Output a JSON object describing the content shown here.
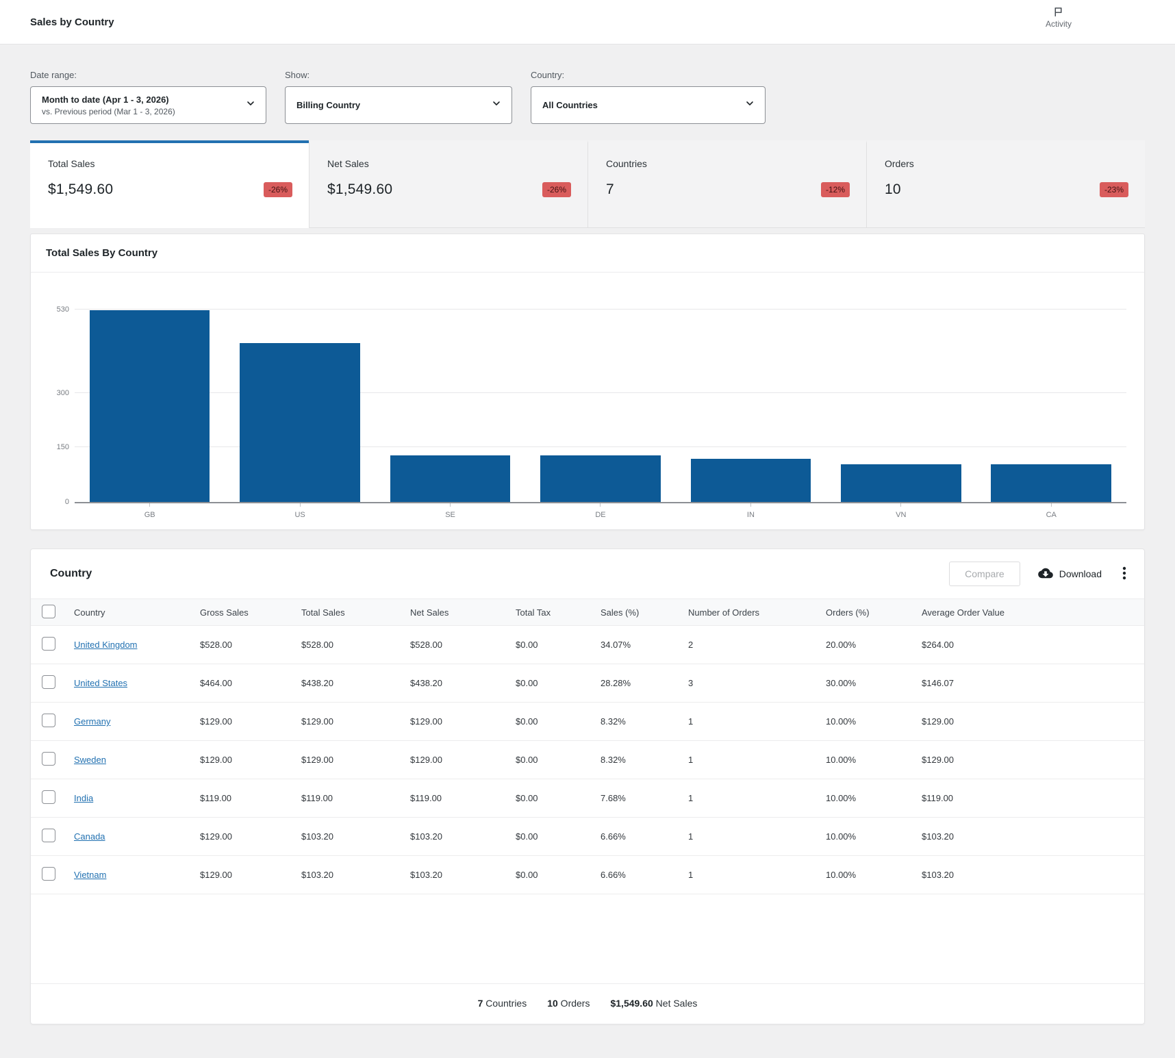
{
  "header": {
    "title": "Sales by Country",
    "activity_label": "Activity"
  },
  "filters": {
    "date_range": {
      "label": "Date range:",
      "value": "Month to date (Apr 1 - 3, 2026)",
      "compare": "vs. Previous period (Mar 1 - 3, 2026)"
    },
    "show": {
      "label": "Show:",
      "value": "Billing Country"
    },
    "country": {
      "label": "Country:",
      "value": "All Countries"
    }
  },
  "summary": [
    {
      "label": "Total Sales",
      "value": "$1,549.60",
      "delta": "-26%",
      "selected": true
    },
    {
      "label": "Net Sales",
      "value": "$1,549.60",
      "delta": "-26%",
      "selected": false
    },
    {
      "label": "Countries",
      "value": "7",
      "delta": "-12%",
      "selected": false
    },
    {
      "label": "Orders",
      "value": "10",
      "delta": "-23%",
      "selected": false
    }
  ],
  "chart_data": {
    "type": "bar",
    "title": "Total Sales By Country",
    "categories": [
      "GB",
      "US",
      "SE",
      "DE",
      "IN",
      "VN",
      "CA"
    ],
    "values": [
      528,
      438.2,
      129,
      129,
      119,
      103.2,
      103.2
    ],
    "xlabel": "",
    "ylabel": "",
    "ylim": [
      0,
      530
    ],
    "yticks": [
      0,
      150,
      300,
      530
    ],
    "grid": true,
    "legend": "none",
    "bar_color": "#0d5a96"
  },
  "table": {
    "title": "Country",
    "compare_label": "Compare",
    "download_label": "Download",
    "columns": [
      {
        "key": "country",
        "label": "Country"
      },
      {
        "key": "gross_sales",
        "label": "Gross Sales"
      },
      {
        "key": "total_sales",
        "label": "Total Sales"
      },
      {
        "key": "net_sales",
        "label": "Net Sales"
      },
      {
        "key": "total_tax",
        "label": "Total Tax"
      },
      {
        "key": "sales_pct",
        "label": "Sales (%)"
      },
      {
        "key": "num_orders",
        "label": "Number of Orders"
      },
      {
        "key": "orders_pct",
        "label": "Orders (%)"
      },
      {
        "key": "avg_order_value",
        "label": "Average Order Value"
      }
    ],
    "rows": [
      {
        "country": "United Kingdom",
        "gross_sales": "$528.00",
        "total_sales": "$528.00",
        "net_sales": "$528.00",
        "total_tax": "$0.00",
        "sales_pct": "34.07%",
        "num_orders": "2",
        "orders_pct": "20.00%",
        "avg_order_value": "$264.00"
      },
      {
        "country": "United States",
        "gross_sales": "$464.00",
        "total_sales": "$438.20",
        "net_sales": "$438.20",
        "total_tax": "$0.00",
        "sales_pct": "28.28%",
        "num_orders": "3",
        "orders_pct": "30.00%",
        "avg_order_value": "$146.07"
      },
      {
        "country": "Germany",
        "gross_sales": "$129.00",
        "total_sales": "$129.00",
        "net_sales": "$129.00",
        "total_tax": "$0.00",
        "sales_pct": "8.32%",
        "num_orders": "1",
        "orders_pct": "10.00%",
        "avg_order_value": "$129.00"
      },
      {
        "country": "Sweden",
        "gross_sales": "$129.00",
        "total_sales": "$129.00",
        "net_sales": "$129.00",
        "total_tax": "$0.00",
        "sales_pct": "8.32%",
        "num_orders": "1",
        "orders_pct": "10.00%",
        "avg_order_value": "$129.00"
      },
      {
        "country": "India",
        "gross_sales": "$119.00",
        "total_sales": "$119.00",
        "net_sales": "$119.00",
        "total_tax": "$0.00",
        "sales_pct": "7.68%",
        "num_orders": "1",
        "orders_pct": "10.00%",
        "avg_order_value": "$119.00"
      },
      {
        "country": "Canada",
        "gross_sales": "$129.00",
        "total_sales": "$103.20",
        "net_sales": "$103.20",
        "total_tax": "$0.00",
        "sales_pct": "6.66%",
        "num_orders": "1",
        "orders_pct": "10.00%",
        "avg_order_value": "$103.20"
      },
      {
        "country": "Vietnam",
        "gross_sales": "$129.00",
        "total_sales": "$103.20",
        "net_sales": "$103.20",
        "total_tax": "$0.00",
        "sales_pct": "6.66%",
        "num_orders": "1",
        "orders_pct": "10.00%",
        "avg_order_value": "$103.20"
      }
    ],
    "footer": [
      {
        "number": "7",
        "label": "Countries"
      },
      {
        "number": "10",
        "label": "Orders"
      },
      {
        "number": "$1,549.60",
        "label": "Net Sales"
      }
    ]
  },
  "colors": {
    "accent": "#2271b1",
    "bar": "#0d5a96",
    "link": "#2271b1",
    "badge_bg": "#d95c5c",
    "badge_text": "#411112"
  }
}
